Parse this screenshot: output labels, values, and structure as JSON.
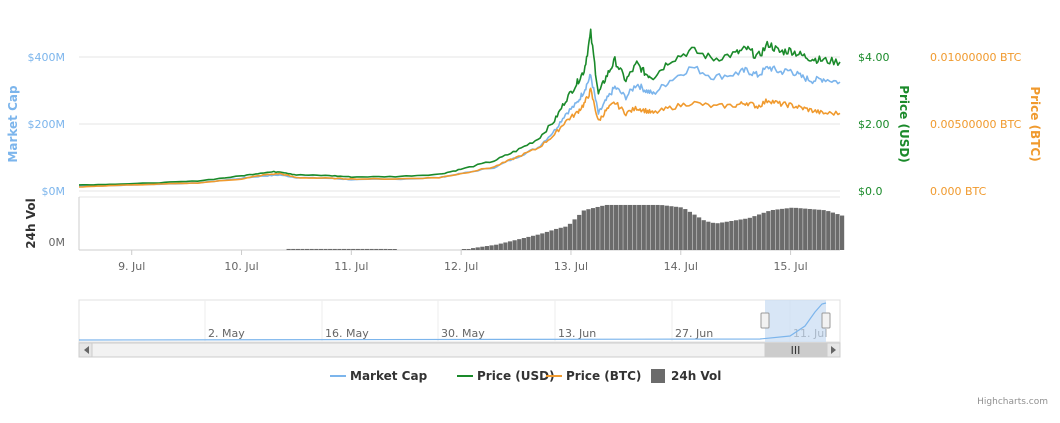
{
  "colors": {
    "market_cap": "#7cb5ec",
    "price_usd": "#1a8a2a",
    "price_btc": "#f09a2e",
    "volume": "#6b6b6b",
    "grid": "#e6e6e6",
    "navigator_mask": "#c8dcf2"
  },
  "chart_data": {
    "type": "line",
    "x_ticks": [
      "9. Jul",
      "10. Jul",
      "11. Jul",
      "12. Jul",
      "13. Jul",
      "14. Jul",
      "15. Jul"
    ],
    "x_range": [
      8.52,
      15.45
    ],
    "grid": true,
    "legend_position": "bottom-center",
    "y_axes": {
      "market_cap": {
        "title": "Market Cap",
        "ticks": [
          "$0M",
          "$200M",
          "$400M"
        ],
        "values": [
          0,
          200,
          400
        ],
        "unit": "M USD",
        "range": [
          0,
          400
        ]
      },
      "price_usd": {
        "title": "Price (USD)",
        "ticks": [
          "$0.0",
          "$2.00",
          "$4.00"
        ],
        "values": [
          0,
          2,
          4
        ],
        "range": [
          0,
          4
        ]
      },
      "price_btc": {
        "title": "Price (BTC)",
        "ticks": [
          "0.000 BTC",
          "0.00500000 BTC",
          "0.01000000 BTC"
        ],
        "values": [
          0,
          0.005,
          0.01
        ],
        "range": [
          0,
          0.01
        ]
      },
      "volume": {
        "title": "24h Vol",
        "ticks": [
          "0M"
        ]
      }
    },
    "series": [
      {
        "name": "Market Cap",
        "axis": "market_cap",
        "x": [
          8.52,
          8.8,
          9.2,
          9.6,
          10.0,
          10.2,
          10.35,
          10.5,
          10.8,
          11.0,
          11.4,
          11.8,
          12.0,
          12.3,
          12.5,
          12.7,
          12.85,
          12.95,
          13.05,
          13.12,
          13.18,
          13.25,
          13.32,
          13.4,
          13.5,
          13.6,
          13.68,
          13.75,
          13.9,
          14.1,
          14.3,
          14.5,
          14.6,
          14.7,
          14.8,
          14.9,
          15.0,
          15.1,
          15.2,
          15.3,
          15.45
        ],
        "values": [
          14,
          16,
          20,
          24,
          38,
          45,
          48,
          40,
          38,
          34,
          35,
          40,
          52,
          70,
          100,
          130,
          180,
          230,
          260,
          300,
          345,
          230,
          270,
          310,
          280,
          320,
          300,
          290,
          330,
          370,
          340,
          350,
          360,
          345,
          370,
          355,
          360,
          340,
          330,
          335,
          325
        ]
      },
      {
        "name": "Price (USD)",
        "axis": "price_usd",
        "x": [
          8.52,
          8.8,
          9.2,
          9.6,
          10.0,
          10.2,
          10.35,
          10.5,
          10.8,
          11.0,
          11.4,
          11.8,
          12.0,
          12.3,
          12.5,
          12.7,
          12.85,
          12.95,
          13.05,
          13.12,
          13.18,
          13.25,
          13.32,
          13.4,
          13.5,
          13.6,
          13.68,
          13.75,
          13.9,
          14.1,
          14.3,
          14.5,
          14.6,
          14.7,
          14.8,
          14.9,
          15.0,
          15.1,
          15.2,
          15.3,
          15.45
        ],
        "values": [
          0.18,
          0.2,
          0.24,
          0.3,
          0.45,
          0.55,
          0.58,
          0.48,
          0.46,
          0.42,
          0.43,
          0.5,
          0.65,
          0.9,
          1.2,
          1.55,
          2.1,
          2.7,
          3.2,
          3.6,
          4.7,
          2.9,
          3.4,
          3.9,
          3.3,
          3.8,
          3.5,
          3.4,
          3.9,
          4.2,
          3.95,
          4.1,
          4.25,
          4.0,
          4.4,
          4.15,
          4.2,
          4.05,
          3.95,
          3.9,
          3.85
        ]
      },
      {
        "name": "Price (BTC)",
        "axis": "price_btc",
        "x": [
          8.52,
          8.8,
          9.2,
          9.6,
          10.0,
          10.2,
          10.35,
          10.5,
          10.8,
          11.0,
          11.4,
          11.8,
          12.0,
          12.3,
          12.5,
          12.7,
          12.85,
          12.95,
          13.05,
          13.12,
          13.18,
          13.25,
          13.32,
          13.4,
          13.5,
          13.6,
          13.68,
          13.75,
          13.9,
          14.1,
          14.3,
          14.5,
          14.6,
          14.7,
          14.8,
          14.9,
          15.0,
          15.1,
          15.2,
          15.3,
          15.45
        ],
        "values": [
          0.0003,
          0.0004,
          0.0005,
          0.0006,
          0.0009,
          0.0012,
          0.0013,
          0.001,
          0.00095,
          0.0009,
          0.0009,
          0.001,
          0.0013,
          0.0018,
          0.0025,
          0.0032,
          0.0042,
          0.0052,
          0.0058,
          0.0065,
          0.0075,
          0.0052,
          0.006,
          0.0066,
          0.0058,
          0.0062,
          0.006,
          0.0058,
          0.0062,
          0.0066,
          0.0063,
          0.0064,
          0.0066,
          0.0063,
          0.0068,
          0.0065,
          0.0064,
          0.0062,
          0.006,
          0.0058,
          0.0058
        ]
      }
    ],
    "volume": {
      "name": "24h Vol",
      "x": [
        10.4,
        11.3,
        11.4,
        12.0,
        12.1,
        12.3,
        12.5,
        12.7,
        12.85,
        12.95,
        13.1,
        13.3,
        13.5,
        13.8,
        14.0,
        14.2,
        14.3,
        14.6,
        14.8,
        15.0,
        15.3,
        15.45
      ],
      "values": [
        0.02,
        0.02,
        0.0,
        0.0,
        0.04,
        0.1,
        0.2,
        0.3,
        0.4,
        0.45,
        0.75,
        0.85,
        0.85,
        0.85,
        0.8,
        0.55,
        0.5,
        0.6,
        0.75,
        0.8,
        0.75,
        0.65
      ]
    }
  },
  "navigator": {
    "ticks": [
      "2. May",
      "16. May",
      "30. May",
      "13. Jun",
      "27. Jun",
      "11. Jul"
    ],
    "scrollbar_grip": "III"
  },
  "legend": {
    "items": [
      {
        "label": "Market Cap",
        "color": "#7cb5ec",
        "kind": "line"
      },
      {
        "label": "Price (USD)",
        "color": "#1a8a2a",
        "kind": "line"
      },
      {
        "label": "Price (BTC)",
        "color": "#f09a2e",
        "kind": "line"
      },
      {
        "label": "24h Vol",
        "color": "#6b6b6b",
        "kind": "box"
      }
    ]
  },
  "credits": "Highcharts.com"
}
